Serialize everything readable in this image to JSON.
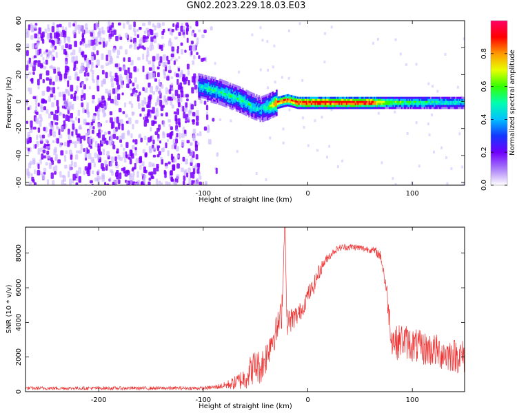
{
  "title": "GN02.2023.229.18.03.E03",
  "colors": {
    "snr_line": "#ee3333",
    "spectro_cold": "#7a00ff",
    "colorbar": [
      "#ffffff",
      "#a97cf8",
      "#6f00ff",
      "#1436ff",
      "#00c0ff",
      "#00ffb0",
      "#33ff00",
      "#e8ff00",
      "#ff9900",
      "#ff0000",
      "#ff0066"
    ]
  },
  "chart_data": [
    {
      "type": "heatmap",
      "title": "",
      "xlabel": "Height of straight line (km)",
      "ylabel": "Frequency (Hz)",
      "xlim": [
        -270,
        150
      ],
      "ylim": [
        -62,
        60
      ],
      "xticks": [
        -200,
        -100,
        0,
        100
      ],
      "yticks": [
        -60,
        -40,
        -20,
        0,
        20,
        40,
        60
      ],
      "colorbar": {
        "label": "Normalized spectral amplitude",
        "range": [
          0,
          1
        ],
        "ticks": [
          0.0,
          0.2,
          0.4,
          0.6,
          0.8
        ]
      },
      "noise_region_x": [
        -270,
        -95
      ],
      "trace": [
        {
          "x": -105,
          "y": 12,
          "amp": 0.45
        },
        {
          "x": -95,
          "y": 10,
          "amp": 0.5
        },
        {
          "x": -85,
          "y": 8,
          "amp": 0.5
        },
        {
          "x": -75,
          "y": 5,
          "amp": 0.55
        },
        {
          "x": -65,
          "y": 2,
          "amp": 0.55
        },
        {
          "x": -55,
          "y": -2,
          "amp": 0.5
        },
        {
          "x": -45,
          "y": -5,
          "amp": 0.45
        },
        {
          "x": -38,
          "y": -3,
          "amp": 0.6
        },
        {
          "x": -30,
          "y": 0,
          "amp": 0.9
        },
        {
          "x": -20,
          "y": 2,
          "amp": 0.9
        },
        {
          "x": -10,
          "y": 0,
          "amp": 0.95
        },
        {
          "x": 0,
          "y": 0,
          "amp": 1.0
        },
        {
          "x": 20,
          "y": 0,
          "amp": 1.0
        },
        {
          "x": 40,
          "y": 0,
          "amp": 1.0
        },
        {
          "x": 60,
          "y": 0,
          "amp": 1.0
        },
        {
          "x": 75,
          "y": 0,
          "amp": 0.7
        },
        {
          "x": 100,
          "y": 0,
          "amp": 0.6
        },
        {
          "x": 120,
          "y": 0,
          "amp": 0.55
        },
        {
          "x": 150,
          "y": 0,
          "amp": 0.5
        }
      ]
    },
    {
      "type": "line",
      "title": "",
      "xlabel": "Height of straight line (km)",
      "ylabel": "SNR (10 * v/v)",
      "xlim": [
        -270,
        150
      ],
      "ylim": [
        0,
        9500
      ],
      "xticks": [
        -200,
        -100,
        0,
        100
      ],
      "yticks": [
        0,
        2000,
        4000,
        6000,
        8000
      ],
      "series": [
        {
          "x": [
            -270,
            -200,
            -150,
            -100,
            -90,
            -80,
            -70,
            -60,
            -55,
            -50,
            -45,
            -40,
            -35,
            -30,
            -25,
            -22,
            -20,
            -15,
            -10,
            -5,
            0,
            5,
            10,
            15,
            20,
            25,
            30,
            35,
            40,
            45,
            50,
            55,
            60,
            65,
            70,
            75,
            80,
            85,
            90,
            100,
            110,
            120,
            130,
            140,
            150
          ],
          "y": [
            200,
            200,
            200,
            200,
            250,
            350,
            500,
            800,
            1200,
            1500,
            1400,
            2000,
            3000,
            3500,
            4500,
            9500,
            4000,
            4200,
            4400,
            4800,
            5600,
            6000,
            6800,
            7400,
            7800,
            8100,
            8300,
            8350,
            8350,
            8350,
            8300,
            8250,
            8200,
            8100,
            7800,
            6000,
            3200,
            2800,
            3000,
            2700,
            2500,
            2400,
            2200,
            2100,
            2000
          ],
          "noise": [
            100,
            100,
            100,
            100,
            120,
            200,
            400,
            700,
            900,
            1000,
            1000,
            1000,
            1000,
            900,
            900,
            600,
            800,
            700,
            600,
            500,
            500,
            500,
            500,
            300,
            250,
            200,
            200,
            200,
            200,
            200,
            200,
            200,
            200,
            250,
            300,
            600,
            1000,
            1000,
            1000,
            1000,
            1000,
            1000,
            1000,
            1000,
            1000
          ]
        }
      ]
    }
  ]
}
